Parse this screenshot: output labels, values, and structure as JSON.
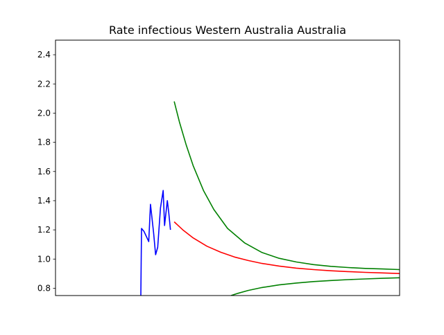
{
  "chart_data": {
    "type": "line",
    "title": "Rate infectious Western Australia Australia",
    "xlabel": "",
    "ylabel": "",
    "x_ticks_shown": false,
    "xlim": [
      0,
      100
    ],
    "ylim": [
      0.75,
      2.5
    ],
    "y_ticks": [
      "0.8",
      "1.0",
      "1.2",
      "1.4",
      "1.6",
      "1.8",
      "2.0",
      "2.2",
      "2.4"
    ],
    "grid": false,
    "legend": "none",
    "series": [
      {
        "role": "observed",
        "color": "#0000ff",
        "x": [
          24.8,
          25.0,
          25.7,
          27.1,
          27.6,
          28.5,
          29.1,
          29.7,
          30.5,
          31.3,
          31.7,
          32.5,
          32.9,
          33.4
        ],
        "y": [
          0.75,
          1.21,
          1.19,
          1.12,
          1.375,
          1.18,
          1.03,
          1.08,
          1.35,
          1.47,
          1.23,
          1.4,
          1.32,
          1.2
        ]
      },
      {
        "role": "projection-median",
        "color": "#ff0000",
        "x": [
          34.5,
          37,
          40,
          44,
          48,
          52,
          56,
          60,
          65,
          70,
          75,
          80,
          85,
          90,
          95,
          100
        ],
        "y": [
          1.255,
          1.2,
          1.145,
          1.088,
          1.047,
          1.014,
          0.99,
          0.97,
          0.952,
          0.938,
          0.928,
          0.92,
          0.914,
          0.909,
          0.905,
          0.901
        ]
      },
      {
        "role": "projection-upper",
        "color": "#008000",
        "x": [
          34.5,
          36,
          38,
          40,
          43,
          46,
          50,
          55,
          60,
          65,
          70,
          75,
          80,
          85,
          90,
          95,
          100
        ],
        "y": [
          2.08,
          1.94,
          1.78,
          1.64,
          1.47,
          1.34,
          1.21,
          1.11,
          1.045,
          1.005,
          0.98,
          0.962,
          0.95,
          0.942,
          0.936,
          0.932,
          0.928
        ]
      },
      {
        "role": "projection-lower",
        "color": "#008000",
        "x": [
          51,
          53,
          56,
          60,
          65,
          70,
          75,
          80,
          85,
          90,
          95,
          100
        ],
        "y": [
          0.75,
          0.765,
          0.785,
          0.805,
          0.823,
          0.836,
          0.846,
          0.853,
          0.859,
          0.864,
          0.868,
          0.872
        ]
      }
    ]
  }
}
